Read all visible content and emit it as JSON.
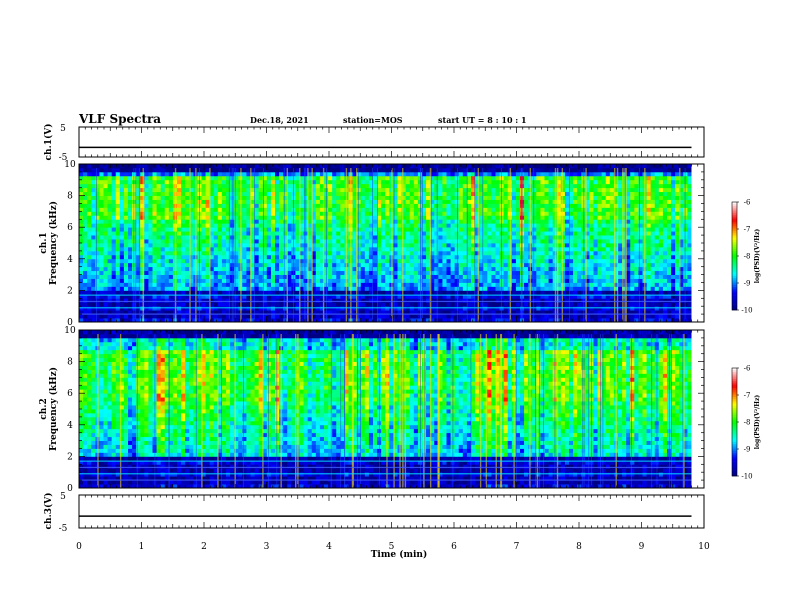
{
  "header": {
    "title": "VLF Spectra",
    "date": "Dec.18, 2021",
    "station": "station=MOS",
    "start_ut": "start  UT =   8 : 10 : 1"
  },
  "chart_data": [
    {
      "type": "line",
      "id": "ch1-voltage",
      "ylabel": "ch.1(V)",
      "ylim": [
        -5,
        5
      ],
      "yticks": [
        "5",
        "-5"
      ],
      "xlim": [
        0,
        10
      ],
      "series": [
        {
          "x": [
            0,
            9.8
          ],
          "values": [
            -1.8,
            -1.8
          ]
        }
      ],
      "grid": false
    },
    {
      "type": "heatmap",
      "id": "ch1-spectrogram",
      "ylabel_top": "ch.1",
      "ylabel": "Frequency (kHz)",
      "ylim": [
        0,
        10
      ],
      "yticks": [
        "0",
        "2",
        "4",
        "6",
        "8",
        "10"
      ],
      "xlim": [
        0,
        10
      ],
      "x_extent": [
        0,
        9.8
      ],
      "colorbar": {
        "label": "log(PSD)(V²/Hz)",
        "range": [
          -10,
          -6
        ],
        "ticks": [
          "-6",
          "-7",
          "-8",
          "-9",
          "-10"
        ],
        "colors": [
          "#000080",
          "#0000ff",
          "#00ffff",
          "#00ff00",
          "#ffff00",
          "#ff0000",
          "#ffffff"
        ]
      }
    },
    {
      "type": "heatmap",
      "id": "ch2-spectrogram",
      "ylabel_top": "ch.2",
      "ylabel": "Frequency (kHz)",
      "ylim": [
        0,
        10
      ],
      "yticks": [
        "0",
        "2",
        "4",
        "6",
        "8",
        "10"
      ],
      "xlim": [
        0,
        10
      ],
      "x_extent": [
        0,
        9.8
      ],
      "colorbar": {
        "label": "log(PSD)(V²/Hz)",
        "range": [
          -10,
          -6
        ],
        "ticks": [
          "-6",
          "-7",
          "-8",
          "-9",
          "-10"
        ],
        "colors": [
          "#000080",
          "#0000ff",
          "#00ffff",
          "#00ff00",
          "#ffff00",
          "#ff0000",
          "#ffffff"
        ]
      }
    },
    {
      "type": "line",
      "id": "ch3-voltage",
      "ylabel": "ch.3(V)",
      "ylim": [
        -5,
        5
      ],
      "yticks": [
        "5",
        "-5"
      ],
      "xlim": [
        0,
        10
      ],
      "series": [
        {
          "x": [
            0,
            9.8
          ],
          "values": [
            -1.4,
            -1.4
          ]
        }
      ],
      "grid": false
    }
  ],
  "xaxis": {
    "label": "Time (min)",
    "ticks": [
      "0",
      "1",
      "2",
      "3",
      "4",
      "5",
      "6",
      "7",
      "8",
      "9",
      "10"
    ]
  }
}
